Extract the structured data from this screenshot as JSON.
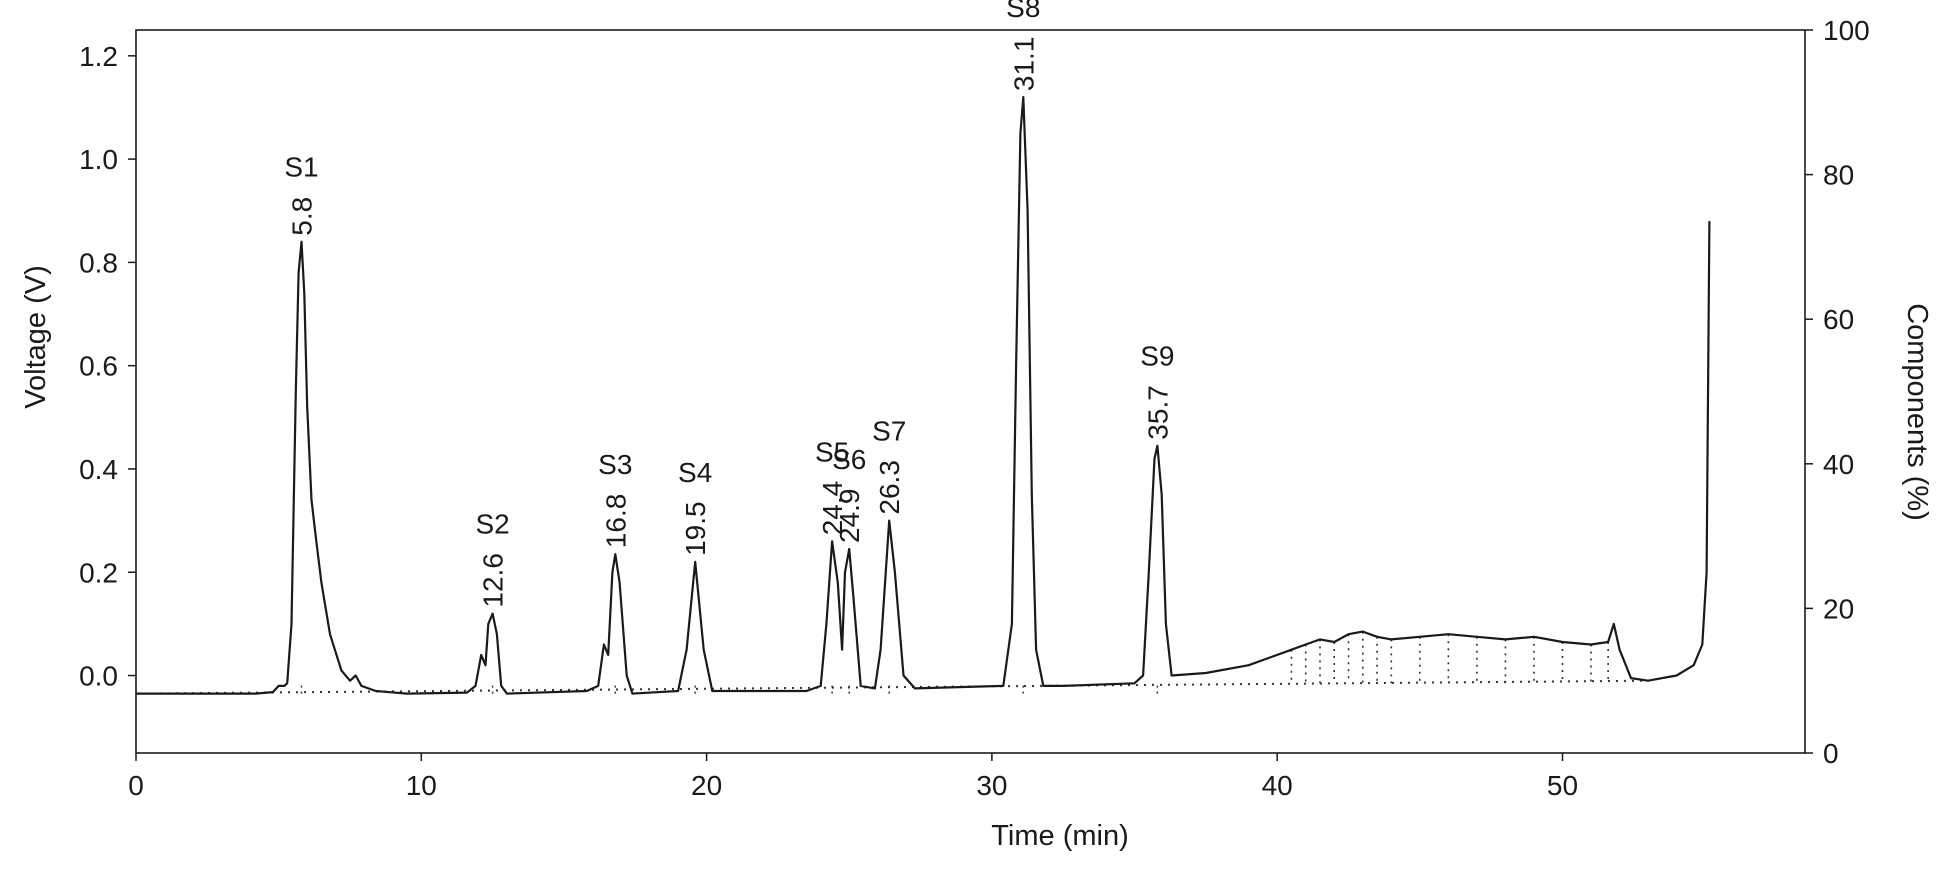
{
  "chart_data": {
    "type": "line",
    "title": "",
    "xlabel": "Time (min)",
    "ylabel": "Voltage (V)",
    "y2label": "Components  (%)",
    "xlim": [
      0,
      58.5
    ],
    "ylim": [
      -0.15,
      1.25
    ],
    "y2lim": [
      0,
      100
    ],
    "xticks": [
      "0",
      "10",
      "20",
      "30",
      "40",
      "50"
    ],
    "yticks": [
      "0.0",
      "0.2",
      "0.4",
      "0.6",
      "0.8",
      "1.0",
      "1.2"
    ],
    "y2ticks": [
      "0",
      "20",
      "40",
      "60",
      "80",
      "100"
    ],
    "grid": false,
    "baseline": -0.035,
    "peaks": [
      {
        "name": "S1",
        "rt": "5.8",
        "x": 5.8,
        "y": 0.84
      },
      {
        "name": "S2",
        "rt": "12.6",
        "x": 12.5,
        "y": 0.12
      },
      {
        "name": "S3",
        "rt": "16.8",
        "x": 16.8,
        "y": 0.235
      },
      {
        "name": "S4",
        "rt": "19.5",
        "x": 19.6,
        "y": 0.22
      },
      {
        "name": "S5",
        "rt": "24.4",
        "x": 24.4,
        "y": 0.26
      },
      {
        "name": "S6",
        "rt": "24.9",
        "x": 25.0,
        "y": 0.245
      },
      {
        "name": "S7",
        "rt": "26.3",
        "x": 26.4,
        "y": 0.3
      },
      {
        "name": "S8",
        "rt": "31.1",
        "x": 31.1,
        "y": 1.12
      },
      {
        "name": "S9",
        "rt": "35.7",
        "x": 35.8,
        "y": 0.445
      }
    ],
    "series": [
      {
        "values": [
          [
            0,
            -0.035
          ],
          [
            4.2,
            -0.035
          ],
          [
            4.8,
            -0.032
          ],
          [
            5.0,
            -0.02
          ],
          [
            5.2,
            -0.02
          ],
          [
            5.3,
            -0.015
          ],
          [
            5.45,
            0.1
          ],
          [
            5.6,
            0.55
          ],
          [
            5.7,
            0.78
          ],
          [
            5.8,
            0.84
          ],
          [
            5.9,
            0.74
          ],
          [
            6.0,
            0.52
          ],
          [
            6.15,
            0.34
          ],
          [
            6.3,
            0.27
          ],
          [
            6.5,
            0.18
          ],
          [
            6.8,
            0.08
          ],
          [
            7.2,
            0.01
          ],
          [
            7.5,
            -0.01
          ],
          [
            7.7,
            0.0
          ],
          [
            7.9,
            -0.02
          ],
          [
            8.4,
            -0.03
          ],
          [
            9.5,
            -0.035
          ],
          [
            11.6,
            -0.033
          ],
          [
            11.9,
            -0.02
          ],
          [
            12.1,
            0.04
          ],
          [
            12.25,
            0.02
          ],
          [
            12.35,
            0.1
          ],
          [
            12.5,
            0.12
          ],
          [
            12.65,
            0.08
          ],
          [
            12.8,
            -0.02
          ],
          [
            13.0,
            -0.035
          ],
          [
            15.8,
            -0.03
          ],
          [
            16.2,
            -0.02
          ],
          [
            16.4,
            0.06
          ],
          [
            16.55,
            0.04
          ],
          [
            16.7,
            0.2
          ],
          [
            16.8,
            0.235
          ],
          [
            16.95,
            0.18
          ],
          [
            17.2,
            0.0
          ],
          [
            17.4,
            -0.035
          ],
          [
            19.0,
            -0.03
          ],
          [
            19.3,
            0.05
          ],
          [
            19.6,
            0.22
          ],
          [
            19.9,
            0.05
          ],
          [
            20.2,
            -0.03
          ],
          [
            23.5,
            -0.03
          ],
          [
            24.0,
            -0.02
          ],
          [
            24.2,
            0.1
          ],
          [
            24.4,
            0.26
          ],
          [
            24.6,
            0.18
          ],
          [
            24.75,
            0.05
          ],
          [
            24.85,
            0.2
          ],
          [
            25.0,
            0.245
          ],
          [
            25.15,
            0.15
          ],
          [
            25.4,
            -0.02
          ],
          [
            25.9,
            -0.025
          ],
          [
            26.1,
            0.05
          ],
          [
            26.4,
            0.3
          ],
          [
            26.6,
            0.2
          ],
          [
            26.9,
            0.0
          ],
          [
            27.3,
            -0.025
          ],
          [
            30.4,
            -0.02
          ],
          [
            30.7,
            0.1
          ],
          [
            30.85,
            0.6
          ],
          [
            31.0,
            1.05
          ],
          [
            31.1,
            1.12
          ],
          [
            31.25,
            0.9
          ],
          [
            31.4,
            0.35
          ],
          [
            31.55,
            0.05
          ],
          [
            31.8,
            -0.02
          ],
          [
            32.5,
            -0.02
          ],
          [
            35.0,
            -0.015
          ],
          [
            35.3,
            0.0
          ],
          [
            35.5,
            0.2
          ],
          [
            35.7,
            0.42
          ],
          [
            35.8,
            0.445
          ],
          [
            35.95,
            0.35
          ],
          [
            36.1,
            0.1
          ],
          [
            36.3,
            0.0
          ],
          [
            37.5,
            0.005
          ],
          [
            39.0,
            0.02
          ],
          [
            40.0,
            0.04
          ],
          [
            40.5,
            0.05
          ],
          [
            41.0,
            0.06
          ],
          [
            41.5,
            0.07
          ],
          [
            42.0,
            0.065
          ],
          [
            42.5,
            0.08
          ],
          [
            43.0,
            0.085
          ],
          [
            43.5,
            0.075
          ],
          [
            44.0,
            0.07
          ],
          [
            45.0,
            0.075
          ],
          [
            46.0,
            0.08
          ],
          [
            47.0,
            0.075
          ],
          [
            48.0,
            0.07
          ],
          [
            49.0,
            0.075
          ],
          [
            50.0,
            0.065
          ],
          [
            51.0,
            0.06
          ],
          [
            51.6,
            0.065
          ],
          [
            51.8,
            0.1
          ],
          [
            52.0,
            0.05
          ],
          [
            52.4,
            -0.005
          ],
          [
            53.0,
            -0.01
          ],
          [
            54.0,
            0.0
          ],
          [
            54.6,
            0.02
          ],
          [
            54.9,
            0.06
          ],
          [
            55.05,
            0.2
          ],
          [
            55.15,
            0.88
          ]
        ]
      }
    ]
  }
}
